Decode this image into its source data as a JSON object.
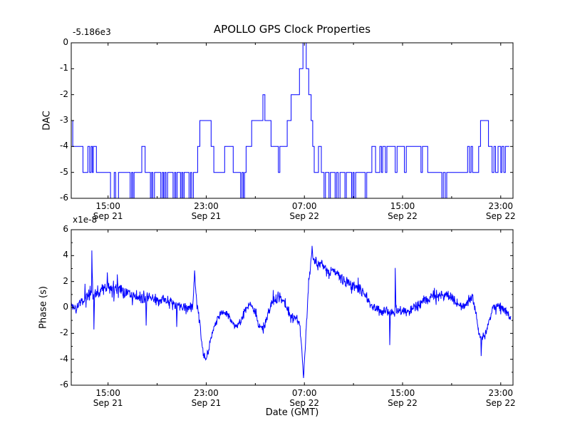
{
  "figure": {
    "background": "#ffffff",
    "axis_color": "#000000",
    "line_color": "#0000ff"
  },
  "chart_data": [
    {
      "type": "line",
      "style": "step",
      "title": "APOLLO GPS Clock Properties",
      "ylabel": "DAC",
      "offset_text": "-5.186e3",
      "value_offset": -5186,
      "ylim": [
        -6,
        0
      ],
      "yticks": [
        0,
        -1,
        -2,
        -3,
        -4,
        -5,
        -6
      ],
      "x_axis": {
        "xlim_hours": [
          0,
          36
        ],
        "tick_t": [
          3,
          11,
          19,
          27,
          35
        ],
        "tick_time": [
          "15:00",
          "23:00",
          "07:00",
          "15:00",
          "23:00"
        ],
        "tick_date": [
          "Sep 21",
          "Sep 21",
          "Sep 22",
          "Sep 22",
          "Sep 22"
        ],
        "minor_tick_t": [
          7,
          15,
          23,
          31
        ]
      },
      "line_color": "#0000ff",
      "end_t": 35.7,
      "steps": [
        [
          0.0,
          -3
        ],
        [
          0.12,
          -4
        ],
        [
          0.95,
          -5
        ],
        [
          1.35,
          -4
        ],
        [
          1.5,
          -5
        ],
        [
          1.62,
          -4
        ],
        [
          1.72,
          -5
        ],
        [
          1.8,
          -4
        ],
        [
          2.05,
          -5
        ],
        [
          3.2,
          -6
        ],
        [
          3.5,
          -5
        ],
        [
          3.62,
          -6
        ],
        [
          3.85,
          -5
        ],
        [
          4.8,
          -6
        ],
        [
          4.92,
          -5
        ],
        [
          5.02,
          -6
        ],
        [
          5.12,
          -5
        ],
        [
          5.75,
          -4
        ],
        [
          6.02,
          -5
        ],
        [
          6.45,
          -6
        ],
        [
          6.55,
          -5
        ],
        [
          6.65,
          -6
        ],
        [
          6.78,
          -5
        ],
        [
          7.3,
          -6
        ],
        [
          7.42,
          -5
        ],
        [
          7.52,
          -6
        ],
        [
          7.62,
          -5
        ],
        [
          7.72,
          -6
        ],
        [
          7.85,
          -5
        ],
        [
          8.3,
          -6
        ],
        [
          8.42,
          -5
        ],
        [
          8.52,
          -6
        ],
        [
          8.62,
          -5
        ],
        [
          8.9,
          -6
        ],
        [
          9.0,
          -5
        ],
        [
          9.1,
          -6
        ],
        [
          9.2,
          -5
        ],
        [
          9.6,
          -6
        ],
        [
          9.72,
          -5
        ],
        [
          9.82,
          -6
        ],
        [
          9.95,
          -5
        ],
        [
          10.3,
          -4
        ],
        [
          10.48,
          -3
        ],
        [
          11.4,
          -4
        ],
        [
          11.62,
          -5
        ],
        [
          12.5,
          -4
        ],
        [
          13.2,
          -5
        ],
        [
          13.8,
          -6
        ],
        [
          13.92,
          -5
        ],
        [
          14.02,
          -6
        ],
        [
          14.12,
          -5
        ],
        [
          14.25,
          -4
        ],
        [
          14.7,
          -3
        ],
        [
          15.62,
          -2
        ],
        [
          15.78,
          -3
        ],
        [
          16.28,
          -4
        ],
        [
          16.88,
          -5
        ],
        [
          17.0,
          -4
        ],
        [
          17.6,
          -3
        ],
        [
          17.92,
          -2
        ],
        [
          18.6,
          -1
        ],
        [
          18.88,
          0
        ],
        [
          19.15,
          -1
        ],
        [
          19.35,
          -2
        ],
        [
          19.55,
          -3
        ],
        [
          19.68,
          -4
        ],
        [
          19.8,
          -5
        ],
        [
          20.15,
          -4
        ],
        [
          20.38,
          -5
        ],
        [
          20.6,
          -6
        ],
        [
          20.72,
          -5
        ],
        [
          21.0,
          -6
        ],
        [
          21.12,
          -5
        ],
        [
          21.5,
          -6
        ],
        [
          21.62,
          -5
        ],
        [
          21.75,
          -6
        ],
        [
          21.9,
          -5
        ],
        [
          22.3,
          -6
        ],
        [
          22.42,
          -5
        ],
        [
          22.85,
          -6
        ],
        [
          22.95,
          -5
        ],
        [
          23.05,
          -6
        ],
        [
          23.18,
          -5
        ],
        [
          23.95,
          -6
        ],
        [
          24.08,
          -5
        ],
        [
          24.5,
          -4
        ],
        [
          24.8,
          -5
        ],
        [
          25.15,
          -4
        ],
        [
          25.28,
          -5
        ],
        [
          25.38,
          -4
        ],
        [
          25.6,
          -5
        ],
        [
          25.72,
          -4
        ],
        [
          26.4,
          -5
        ],
        [
          26.55,
          -4
        ],
        [
          27.15,
          -5
        ],
        [
          27.3,
          -4
        ],
        [
          28.5,
          -5
        ],
        [
          28.62,
          -4
        ],
        [
          29.05,
          -5
        ],
        [
          30.2,
          -6
        ],
        [
          30.32,
          -5
        ],
        [
          30.48,
          -6
        ],
        [
          30.6,
          -5
        ],
        [
          32.3,
          -4
        ],
        [
          32.45,
          -5
        ],
        [
          32.58,
          -4
        ],
        [
          32.7,
          -5
        ],
        [
          33.2,
          -4
        ],
        [
          33.35,
          -3
        ],
        [
          34.0,
          -4
        ],
        [
          34.3,
          -5
        ],
        [
          34.45,
          -4
        ],
        [
          34.58,
          -5
        ],
        [
          34.78,
          -4
        ],
        [
          35.0,
          -5
        ],
        [
          35.1,
          -4
        ],
        [
          35.25,
          -5
        ],
        [
          35.38,
          -4
        ]
      ]
    },
    {
      "type": "line",
      "style": "noisy",
      "ylabel": "Phase (s)",
      "xlabel": "Date (GMT)",
      "offset_text": "x1e-8",
      "scale_factor": 1e-08,
      "ylim": [
        -6,
        6
      ],
      "yticks_major": [
        6,
        4,
        2,
        0,
        -2,
        -4,
        -6
      ],
      "yticks_minor": [
        5,
        3,
        1,
        -1,
        -3,
        -5
      ],
      "x_axis": {
        "xlim_hours": [
          0,
          36
        ],
        "tick_t": [
          3,
          11,
          19,
          27,
          35
        ],
        "tick_time": [
          "15:00",
          "23:00",
          "07:00",
          "15:00",
          "23:00"
        ],
        "tick_date": [
          "Sep 21",
          "Sep 21",
          "Sep 22",
          "Sep 22",
          "Sep 22"
        ],
        "minor_tick_t": [
          7,
          15,
          23,
          31
        ]
      },
      "line_color": "#0000ff",
      "end_t": 35.82,
      "keyframes": [
        [
          0.0,
          0.1,
          0.5
        ],
        [
          0.4,
          -0.3,
          0.35
        ],
        [
          0.8,
          0.55,
          0.45
        ],
        [
          1.2,
          0.95,
          0.55
        ],
        [
          1.7,
          1.1,
          0.6
        ],
        [
          2.2,
          1.25,
          0.6
        ],
        [
          2.6,
          1.5,
          0.55
        ],
        [
          3.0,
          1.4,
          0.6
        ],
        [
          3.4,
          1.55,
          0.55
        ],
        [
          3.8,
          1.3,
          0.6
        ],
        [
          4.2,
          1.15,
          0.5
        ],
        [
          4.8,
          1.05,
          0.55
        ],
        [
          5.4,
          0.95,
          0.55
        ],
        [
          6.0,
          0.8,
          0.6
        ],
        [
          6.6,
          0.7,
          0.5
        ],
        [
          7.2,
          0.55,
          0.5
        ],
        [
          7.8,
          0.5,
          0.55
        ],
        [
          8.4,
          0.3,
          0.5
        ],
        [
          9.0,
          0.1,
          0.45
        ],
        [
          9.5,
          -0.15,
          0.4
        ],
        [
          9.9,
          0.1,
          0.35
        ],
        [
          10.05,
          2.4,
          0.25
        ],
        [
          10.2,
          0.6,
          0.4
        ],
        [
          10.5,
          -1.4,
          0.35
        ],
        [
          10.75,
          -3.6,
          0.3
        ],
        [
          11.0,
          -4.0,
          0.25
        ],
        [
          11.25,
          -3.0,
          0.3
        ],
        [
          11.6,
          -1.6,
          0.35
        ],
        [
          11.95,
          -0.75,
          0.35
        ],
        [
          12.35,
          -0.35,
          0.35
        ],
        [
          12.75,
          -0.55,
          0.35
        ],
        [
          13.15,
          -1.25,
          0.35
        ],
        [
          13.5,
          -1.55,
          0.35
        ],
        [
          13.85,
          -1.0,
          0.35
        ],
        [
          14.2,
          -0.1,
          0.35
        ],
        [
          14.6,
          0.3,
          0.35
        ],
        [
          14.95,
          -0.3,
          0.35
        ],
        [
          15.3,
          -1.4,
          0.35
        ],
        [
          15.6,
          -1.6,
          0.35
        ],
        [
          15.95,
          -0.8,
          0.4
        ],
        [
          16.3,
          0.25,
          0.45
        ],
        [
          16.7,
          0.7,
          0.5
        ],
        [
          17.1,
          0.75,
          0.55
        ],
        [
          17.45,
          0.3,
          0.5
        ],
        [
          17.75,
          -0.5,
          0.45
        ],
        [
          18.05,
          -0.85,
          0.45
        ],
        [
          18.35,
          -0.75,
          0.4
        ],
        [
          18.6,
          -1.1,
          0.35
        ],
        [
          18.78,
          -3.2,
          0.25
        ],
        [
          18.92,
          -5.2,
          0.15
        ],
        [
          19.05,
          -3.4,
          0.25
        ],
        [
          19.2,
          -0.6,
          0.35
        ],
        [
          19.38,
          2.2,
          0.4
        ],
        [
          19.6,
          4.1,
          0.4
        ],
        [
          19.85,
          3.6,
          0.4
        ],
        [
          20.1,
          3.2,
          0.45
        ],
        [
          20.4,
          3.3,
          0.45
        ],
        [
          20.7,
          2.9,
          0.45
        ],
        [
          21.0,
          2.6,
          0.45
        ],
        [
          21.35,
          2.9,
          0.45
        ],
        [
          21.7,
          2.5,
          0.45
        ],
        [
          22.1,
          2.1,
          0.45
        ],
        [
          22.5,
          1.9,
          0.45
        ],
        [
          22.9,
          1.7,
          0.45
        ],
        [
          23.3,
          1.6,
          0.45
        ],
        [
          23.7,
          1.25,
          0.45
        ],
        [
          24.1,
          0.7,
          0.45
        ],
        [
          24.5,
          0.15,
          0.45
        ],
        [
          24.9,
          -0.15,
          0.4
        ],
        [
          25.3,
          -0.3,
          0.4
        ],
        [
          25.7,
          -0.3,
          0.4
        ],
        [
          26.1,
          -0.35,
          0.4
        ],
        [
          26.5,
          -0.25,
          0.4
        ],
        [
          26.9,
          -0.3,
          0.4
        ],
        [
          27.3,
          -0.35,
          0.4
        ],
        [
          27.7,
          -0.2,
          0.45
        ],
        [
          28.1,
          0.05,
          0.45
        ],
        [
          28.5,
          0.3,
          0.45
        ],
        [
          28.9,
          0.6,
          0.45
        ],
        [
          29.3,
          0.8,
          0.45
        ],
        [
          29.7,
          0.9,
          0.5
        ],
        [
          30.1,
          1.0,
          0.5
        ],
        [
          30.5,
          0.9,
          0.5
        ],
        [
          30.9,
          0.75,
          0.5
        ],
        [
          31.3,
          0.45,
          0.45
        ],
        [
          31.7,
          0.2,
          0.4
        ],
        [
          32.1,
          0.1,
          0.4
        ],
        [
          32.45,
          0.4,
          0.4
        ],
        [
          32.7,
          0.9,
          0.35
        ],
        [
          32.95,
          -0.3,
          0.3
        ],
        [
          33.2,
          -1.9,
          0.3
        ],
        [
          33.45,
          -2.3,
          0.3
        ],
        [
          33.7,
          -2.2,
          0.3
        ],
        [
          33.95,
          -1.3,
          0.35
        ],
        [
          34.2,
          -0.5,
          0.4
        ],
        [
          34.5,
          0.0,
          0.45
        ],
        [
          34.85,
          0.15,
          0.45
        ],
        [
          35.15,
          0.05,
          0.4
        ],
        [
          35.45,
          -0.4,
          0.35
        ],
        [
          35.82,
          -0.85,
          0.25
        ]
      ],
      "spikes": [
        [
          1.68,
          4.4
        ],
        [
          1.85,
          -1.7
        ],
        [
          2.95,
          2.7
        ],
        [
          3.75,
          2.55
        ],
        [
          6.1,
          -1.4
        ],
        [
          8.6,
          -1.5
        ],
        [
          10.05,
          2.85
        ],
        [
          18.92,
          -5.45
        ],
        [
          19.62,
          4.75
        ],
        [
          21.3,
          3.0
        ],
        [
          25.95,
          -2.9
        ],
        [
          26.4,
          3.05
        ],
        [
          33.4,
          -3.75
        ]
      ]
    }
  ]
}
